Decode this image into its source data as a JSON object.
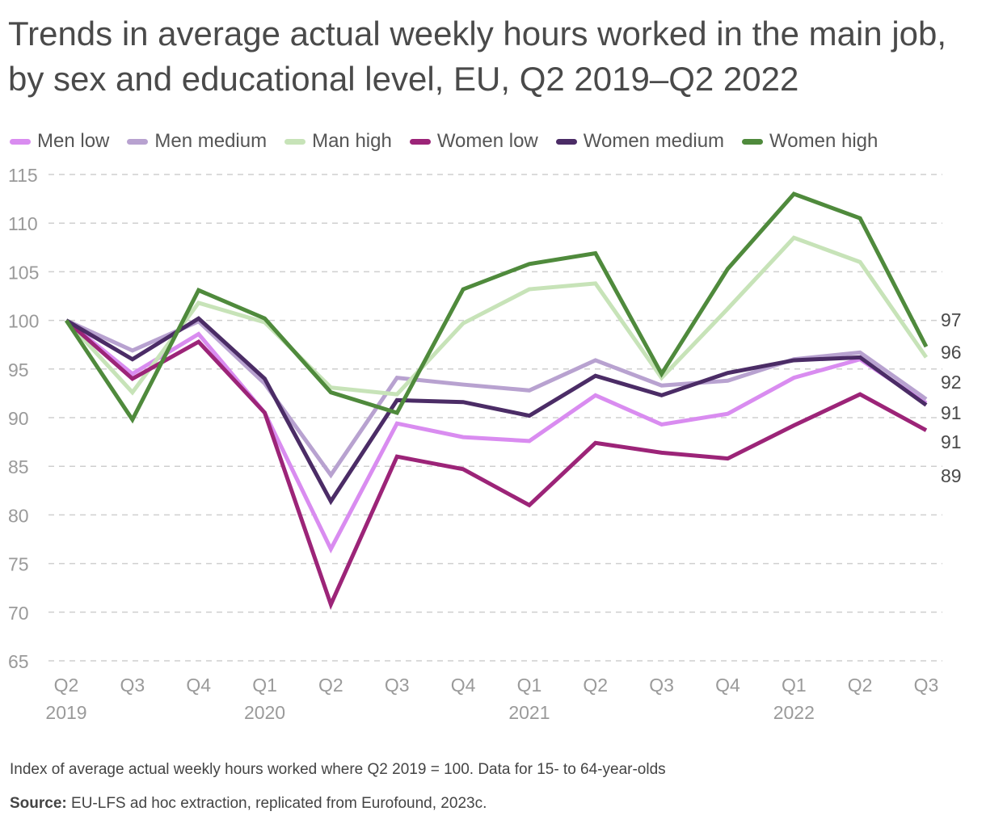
{
  "title": "Trends in average actual weekly hours worked in the main job, by sex and educational level, EU, Q2 2019–Q2 2022",
  "note": "Index of average actual weekly hours worked where Q2 2019 = 100. Data for 15- to 64-year-olds",
  "source_label": "Source:",
  "source_text": "EU-LFS ad hoc extraction, replicated from Eurofound, 2023c.",
  "chart_data": {
    "type": "line",
    "categories": [
      "Q2",
      "Q3",
      "Q4",
      "Q1",
      "Q2",
      "Q3",
      "Q4",
      "Q1",
      "Q2",
      "Q3",
      "Q4",
      "Q1",
      "Q2",
      "Q3"
    ],
    "year_labels": [
      "2019",
      "",
      "",
      "2020",
      "",
      "",
      "",
      "2021",
      "",
      "",
      "",
      "2022",
      "",
      ""
    ],
    "ylim": [
      65,
      115
    ],
    "yticks": [
      65,
      70,
      75,
      80,
      85,
      90,
      95,
      100,
      105,
      110,
      115
    ],
    "grid": true,
    "legend_position": "top",
    "series": [
      {
        "name": "Men low",
        "color": "#d98cf0",
        "values": [
          100,
          94.5,
          98.6,
          90.5,
          76.5,
          89.4,
          88.0,
          87.6,
          92.3,
          89.3,
          90.4,
          94.1,
          96.0,
          91.5
        ]
      },
      {
        "name": "Men medium",
        "color": "#b8a2d0",
        "values": [
          100,
          96.9,
          99.9,
          93.5,
          84.1,
          94.1,
          93.4,
          92.8,
          95.9,
          93.3,
          93.8,
          96.0,
          96.7,
          91.9
        ]
      },
      {
        "name": "Man high",
        "color": "#c7e3b8",
        "values": [
          100,
          92.6,
          101.8,
          99.8,
          93.1,
          92.4,
          99.7,
          103.2,
          103.8,
          94.1,
          101.2,
          108.5,
          106.0,
          96.2
        ]
      },
      {
        "name": "Women low",
        "color": "#9c2478",
        "values": [
          100,
          94.0,
          97.8,
          90.5,
          70.8,
          86.0,
          84.7,
          81.0,
          87.4,
          86.4,
          85.8,
          89.2,
          92.4,
          88.7
        ]
      },
      {
        "name": "Women medium",
        "color": "#4b2c66",
        "values": [
          100,
          96.0,
          100.2,
          94.0,
          81.4,
          91.8,
          91.6,
          90.2,
          94.3,
          92.3,
          94.6,
          95.9,
          96.2,
          91.3
        ]
      },
      {
        "name": "Women high",
        "color": "#4f8a3c",
        "values": [
          100,
          89.8,
          103.1,
          100.2,
          92.6,
          90.5,
          103.2,
          105.8,
          106.9,
          94.5,
          105.3,
          113.0,
          110.5,
          97.3
        ]
      }
    ],
    "end_labels": [
      "97",
      "96",
      "92",
      "91",
      "91",
      "89"
    ]
  }
}
